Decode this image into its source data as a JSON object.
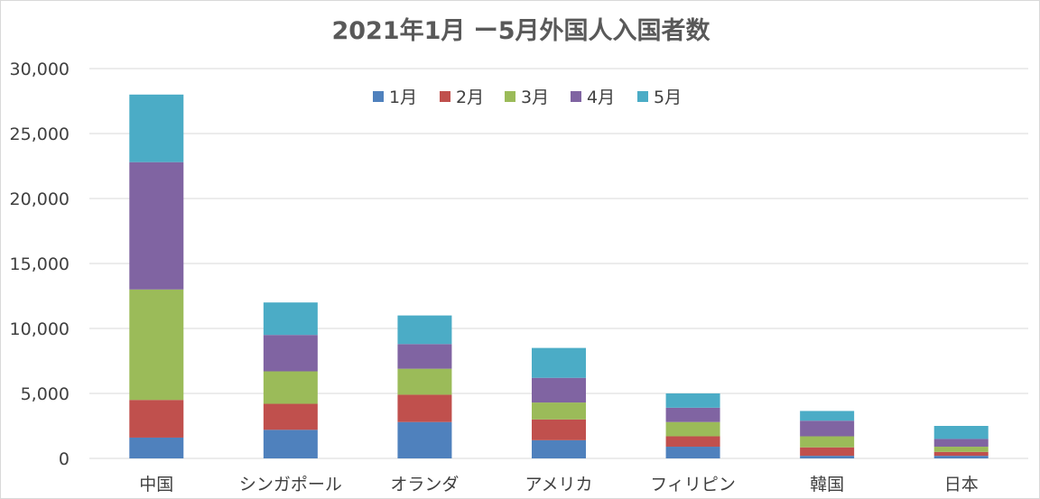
{
  "chart_data": {
    "type": "bar",
    "stacked": true,
    "title": "2021年1月 ー5月外国人入国者数",
    "xlabel": "",
    "ylabel": "",
    "ylim": [
      0,
      30000
    ],
    "yticks": [
      "0",
      "5,000",
      "10,000",
      "15,000",
      "20,000",
      "25,000",
      "30,000"
    ],
    "ytick_values": [
      0,
      5000,
      10000,
      15000,
      20000,
      25000,
      30000
    ],
    "grid": true,
    "legend_position": "top-center",
    "categories": [
      "中国",
      "シンガポール",
      "オランダ",
      "アメリカ",
      "フィリピン",
      "韓国",
      "日本"
    ],
    "series": [
      {
        "name": "1月",
        "color": "#4f81bd",
        "values": [
          1600,
          2200,
          2800,
          1400,
          900,
          200,
          200
        ]
      },
      {
        "name": "2月",
        "color": "#c0504d",
        "values": [
          2900,
          2000,
          2100,
          1600,
          800,
          650,
          300
        ]
      },
      {
        "name": "3月",
        "color": "#9bbb59",
        "values": [
          8500,
          2500,
          2000,
          1300,
          1100,
          850,
          400
        ]
      },
      {
        "name": "4月",
        "color": "#8064a2",
        "values": [
          9800,
          2800,
          1900,
          1900,
          1100,
          1200,
          600
        ]
      },
      {
        "name": "5月",
        "color": "#4bacc6",
        "values": [
          5200,
          2500,
          2200,
          2300,
          1100,
          750,
          1000
        ]
      }
    ]
  }
}
